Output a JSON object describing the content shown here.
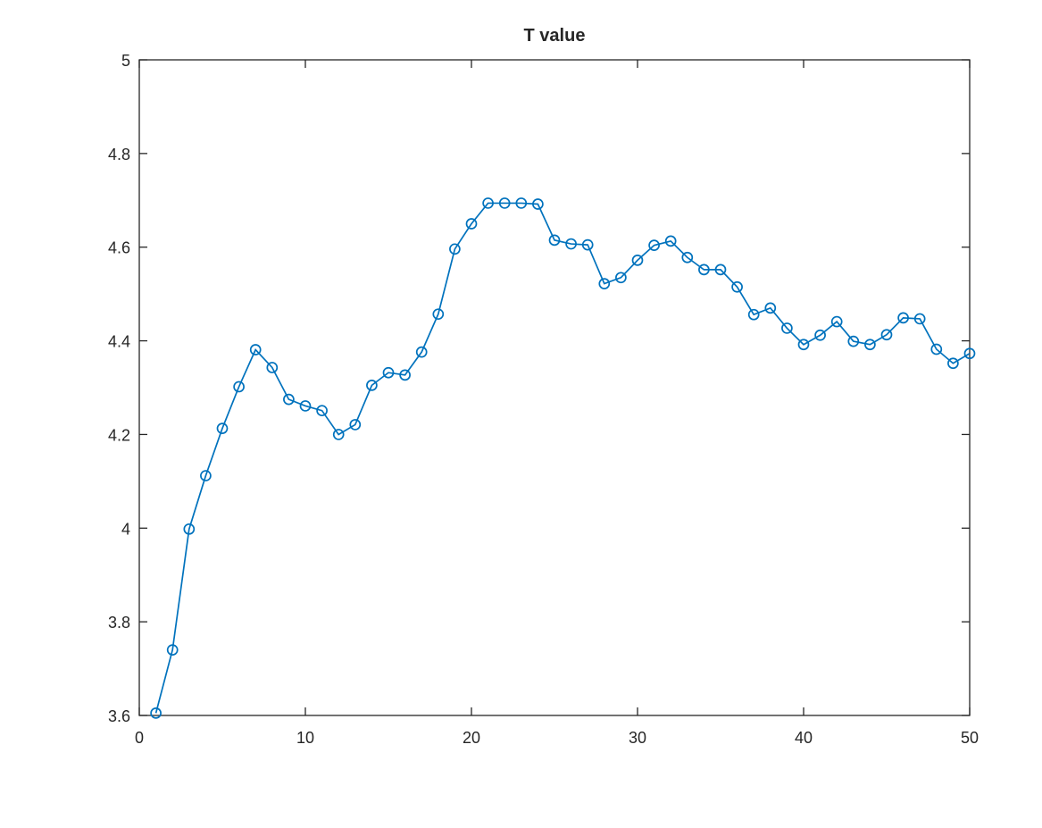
{
  "chart_data": {
    "type": "line",
    "title": "T value",
    "xlabel": "",
    "ylabel": "",
    "xlim": [
      0,
      50
    ],
    "ylim": [
      3.6,
      5
    ],
    "xticks": [
      0,
      10,
      20,
      30,
      40,
      50
    ],
    "xtick_labels": [
      "0",
      "10",
      "20",
      "30",
      "40",
      "50"
    ],
    "yticks": [
      3.6,
      3.8,
      4,
      4.2,
      4.4,
      4.6,
      4.8,
      5
    ],
    "ytick_labels": [
      "3.6",
      "3.8",
      "4",
      "4.2",
      "4.4",
      "4.6",
      "4.8",
      "5"
    ],
    "grid": false,
    "box": true,
    "marker": "circle",
    "color": "#0072bd",
    "x": [
      1,
      2,
      3,
      4,
      5,
      6,
      7,
      8,
      9,
      10,
      11,
      12,
      13,
      14,
      15,
      16,
      17,
      18,
      19,
      20,
      21,
      22,
      23,
      24,
      25,
      26,
      27,
      28,
      29,
      30,
      31,
      32,
      33,
      34,
      35,
      36,
      37,
      38,
      39,
      40,
      41,
      42,
      43,
      44,
      45,
      46,
      47,
      48,
      49,
      50
    ],
    "y": [
      3.605,
      3.74,
      3.998,
      4.112,
      4.213,
      4.302,
      4.381,
      4.343,
      4.275,
      4.261,
      4.251,
      4.2,
      4.221,
      4.305,
      4.332,
      4.327,
      4.376,
      4.457,
      4.596,
      4.65,
      4.694,
      4.694,
      4.694,
      4.692,
      4.615,
      4.607,
      4.605,
      4.522,
      4.535,
      4.572,
      4.604,
      4.613,
      4.578,
      4.552,
      4.552,
      4.515,
      4.456,
      4.47,
      4.427,
      4.392,
      4.412,
      4.441,
      4.399,
      4.392,
      4.413,
      4.449,
      4.447,
      4.382,
      4.352,
      4.373
    ]
  }
}
